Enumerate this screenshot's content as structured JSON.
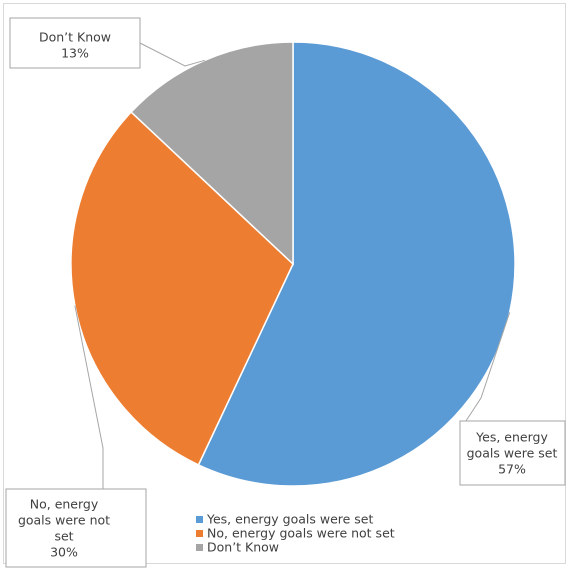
{
  "chart_data": {
    "type": "pie",
    "title": "",
    "slices": [
      {
        "label": "Yes, energy goals were set",
        "value": 57,
        "label_lines": [
          "Yes, energy",
          "goals were set",
          "57%"
        ],
        "color": "#5b9bd5"
      },
      {
        "label": "No, energy goals were not set",
        "value": 30,
        "label_lines": [
          "No, energy",
          "goals were not",
          "set",
          "30%"
        ],
        "color": "#ed7d31"
      },
      {
        "label": "Don’t Know",
        "value": 13,
        "label_lines": [
          "Don’t Know",
          "13%"
        ],
        "color": "#a5a5a5"
      }
    ],
    "legend_position": "bottom"
  }
}
